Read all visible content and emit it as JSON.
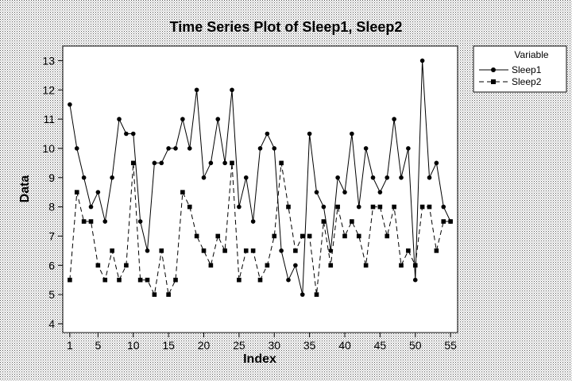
{
  "chart_data": {
    "type": "line",
    "title": "Time Series Plot of Sleep1, Sleep2",
    "xlabel": "Index",
    "ylabel": "Data",
    "xlim": [
      0,
      56
    ],
    "ylim": [
      3.7,
      13.5
    ],
    "x_ticks": [
      1,
      5,
      10,
      15,
      20,
      25,
      30,
      35,
      40,
      45,
      50,
      55
    ],
    "y_ticks": [
      4,
      5,
      6,
      7,
      8,
      9,
      10,
      11,
      12,
      13
    ],
    "grid": false,
    "legend": {
      "title": "Variable",
      "placement": "top-right, outside plot"
    },
    "series": [
      {
        "name": "Sleep1",
        "marker": "circle",
        "line": "solid",
        "values": [
          11.5,
          10,
          9,
          8,
          8.5,
          7.5,
          9,
          11,
          10.5,
          10.5,
          7.5,
          6.5,
          9.5,
          9.5,
          10,
          10,
          11,
          10,
          12,
          9,
          9.5,
          11,
          9.5,
          12,
          8,
          9,
          7.5,
          10,
          10.5,
          10,
          6.5,
          5.5,
          6,
          5,
          10.5,
          8.5,
          8,
          6.5,
          9,
          8.5,
          10.5,
          8,
          10,
          9,
          8.5,
          9,
          11,
          9,
          10,
          5.5,
          13,
          9,
          9.5,
          8,
          7.5
        ]
      },
      {
        "name": "Sleep2",
        "marker": "square",
        "line": "dashed",
        "values": [
          5.5,
          8.5,
          7.5,
          7.5,
          6,
          5.5,
          6.5,
          5.5,
          6,
          9.5,
          5.5,
          5.5,
          5,
          6.5,
          5,
          5.5,
          8.5,
          8,
          7,
          6.5,
          6,
          7,
          6.5,
          9.5,
          5.5,
          6.5,
          6.5,
          5.5,
          6,
          7,
          9.5,
          8,
          6.5,
          7,
          7,
          5,
          7.5,
          6,
          8,
          7,
          7.5,
          7,
          6,
          8,
          8,
          7,
          8,
          6,
          6.5,
          6,
          8,
          8,
          6.5,
          7.5,
          7.5
        ]
      }
    ],
    "colors": {
      "background_pattern": "#4a4a4a",
      "plot_area": "#ffffff",
      "line": "#000000"
    }
  }
}
